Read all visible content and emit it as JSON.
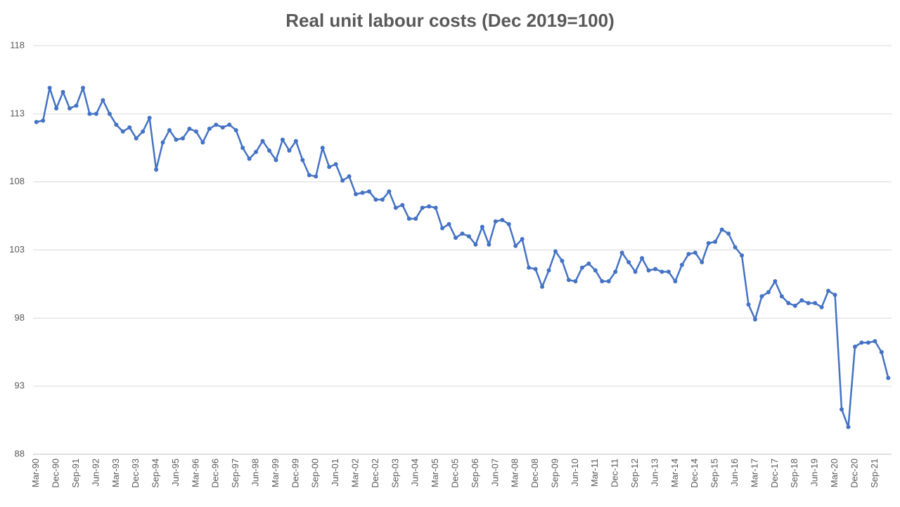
{
  "chart_data": {
    "type": "line",
    "title": "Real unit labour costs (Dec 2019=100)",
    "categories": [
      "Mar-90",
      null,
      null,
      "Dec-90",
      null,
      null,
      "Sep-91",
      null,
      null,
      "Jun-92",
      null,
      null,
      "Mar-93",
      null,
      null,
      "Dec-93",
      null,
      null,
      "Sep-94",
      null,
      null,
      "Jun-95",
      null,
      null,
      "Mar-96",
      null,
      null,
      "Dec-96",
      null,
      null,
      "Sep-97",
      null,
      null,
      "Jun-98",
      null,
      null,
      "Mar-99",
      null,
      null,
      "Dec-99",
      null,
      null,
      "Sep-00",
      null,
      null,
      "Jun-01",
      null,
      null,
      "Mar-02",
      null,
      null,
      "Dec-02",
      null,
      null,
      "Sep-03",
      null,
      null,
      "Jun-04",
      null,
      null,
      "Mar-05",
      null,
      null,
      "Dec-05",
      null,
      null,
      "Sep-06",
      null,
      null,
      "Jun-07",
      null,
      null,
      "Mar-08",
      null,
      null,
      "Dec-08",
      null,
      null,
      "Sep-09",
      null,
      null,
      "Jun-10",
      null,
      null,
      "Mar-11",
      null,
      null,
      "Dec-11",
      null,
      null,
      "Sep-12",
      null,
      null,
      "Jun-13",
      null,
      null,
      "Mar-14",
      null,
      null,
      "Dec-14",
      null,
      null,
      "Sep-15",
      null,
      null,
      "Jun-16",
      null,
      null,
      "Mar-17",
      null,
      null,
      "Dec-17",
      null,
      null,
      "Sep-18",
      null,
      null,
      "Jun-19",
      null,
      null,
      "Mar-20",
      null,
      null,
      "Dec-20",
      null,
      null,
      "Sep-21",
      null,
      null
    ],
    "values": [
      112.4,
      112.5,
      114.9,
      113.4,
      114.6,
      113.4,
      113.6,
      114.9,
      113.0,
      113.0,
      114.0,
      113.0,
      112.2,
      111.7,
      112.0,
      111.2,
      111.7,
      112.7,
      108.9,
      110.9,
      111.8,
      111.1,
      111.2,
      111.9,
      111.7,
      110.9,
      111.9,
      112.2,
      112.0,
      112.2,
      111.8,
      110.5,
      109.7,
      110.2,
      111.0,
      110.3,
      109.6,
      111.1,
      110.3,
      111.0,
      109.6,
      108.5,
      108.4,
      110.5,
      109.1,
      109.3,
      108.1,
      108.4,
      107.1,
      107.2,
      107.3,
      106.7,
      106.7,
      107.3,
      106.1,
      106.3,
      105.3,
      105.3,
      106.1,
      106.2,
      106.1,
      104.6,
      104.9,
      103.9,
      104.2,
      104.0,
      103.4,
      104.7,
      103.4,
      105.1,
      105.2,
      104.9,
      103.3,
      103.8,
      101.7,
      101.6,
      100.3,
      101.5,
      102.9,
      102.2,
      100.8,
      100.7,
      101.7,
      102.0,
      101.5,
      100.7,
      100.7,
      101.4,
      102.8,
      102.1,
      101.4,
      102.4,
      101.5,
      101.6,
      101.4,
      101.4,
      100.7,
      101.9,
      102.7,
      102.8,
      102.1,
      103.5,
      103.6,
      104.5,
      104.2,
      103.2,
      102.6,
      99.0,
      97.9,
      99.6,
      99.9,
      100.7,
      99.6,
      99.1,
      98.9,
      99.3,
      99.1,
      99.1,
      98.8,
      100.0,
      99.7,
      91.3,
      90.0,
      95.9,
      96.2,
      96.2,
      96.3,
      95.5,
      93.6
    ],
    "color": "#4472c4",
    "ylim": [
      88,
      118
    ],
    "yticks": [
      88,
      93,
      98,
      103,
      108,
      113,
      118
    ],
    "grid": true
  }
}
